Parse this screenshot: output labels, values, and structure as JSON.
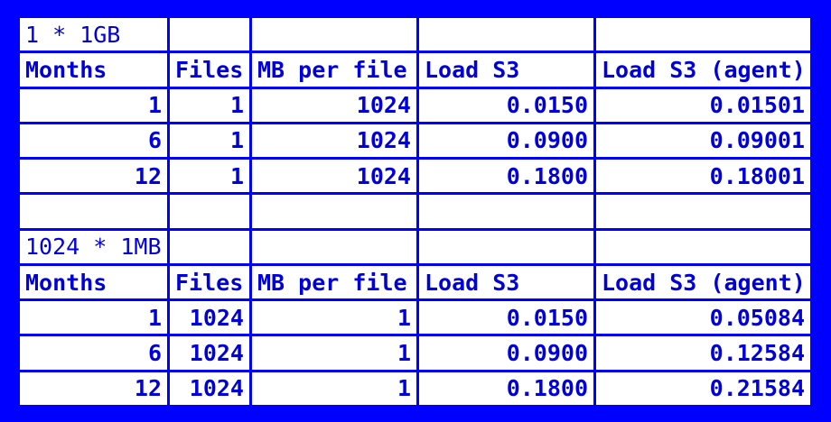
{
  "colors": {
    "frame": "#0000FF",
    "ink": "#0000DC",
    "cell_background": "#FFFFFF"
  },
  "table": {
    "columns": [
      "Months",
      "Files",
      "MB per file",
      "Load S3",
      "Load S3 (agent)"
    ],
    "sections": [
      {
        "title": "1 * 1GB",
        "rows": [
          [
            "1",
            "1",
            "1024",
            "0.0150",
            "0.01501"
          ],
          [
            "6",
            "1",
            "1024",
            "0.0900",
            "0.09001"
          ],
          [
            "12",
            "1",
            "1024",
            "0.1800",
            "0.18001"
          ]
        ]
      },
      {
        "title": "1024 * 1MB",
        "rows": [
          [
            "1",
            "1024",
            "1",
            "0.0150",
            "0.05084"
          ],
          [
            "6",
            "1024",
            "1",
            "0.0900",
            "0.12584"
          ],
          [
            "12",
            "1024",
            "1",
            "0.1800",
            "0.21584"
          ]
        ]
      }
    ]
  }
}
